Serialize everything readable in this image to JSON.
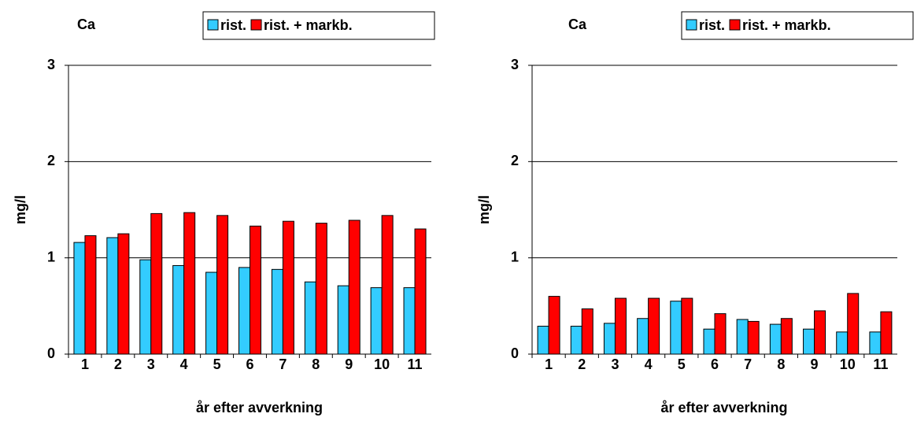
{
  "chart_data": [
    {
      "type": "bar",
      "title": "Ca",
      "ylabel": "mg/l",
      "xlabel": "år efter avverkning",
      "categories": [
        "1",
        "2",
        "3",
        "4",
        "5",
        "6",
        "7",
        "8",
        "9",
        "10",
        "11"
      ],
      "series": [
        {
          "name": "rist.",
          "color": "#33ccff",
          "values": [
            1.16,
            1.21,
            0.98,
            0.92,
            0.85,
            0.9,
            0.88,
            0.75,
            0.71,
            0.69,
            0.69
          ]
        },
        {
          "name": "rist. + markb.",
          "color": "#ff0000",
          "values": [
            1.23,
            1.25,
            1.46,
            1.47,
            1.44,
            1.33,
            1.38,
            1.36,
            1.39,
            1.44,
            1.3
          ]
        }
      ],
      "ylim": [
        0,
        3
      ],
      "yticks": [
        0,
        1,
        2,
        3
      ],
      "grid": true
    },
    {
      "type": "bar",
      "title": "Ca",
      "ylabel": "mg/l",
      "xlabel": "år efter avverkning",
      "categories": [
        "1",
        "2",
        "3",
        "4",
        "5",
        "6",
        "7",
        "8",
        "9",
        "10",
        "11"
      ],
      "series": [
        {
          "name": "rist.",
          "color": "#33ccff",
          "values": [
            0.29,
            0.29,
            0.32,
            0.37,
            0.55,
            0.26,
            0.36,
            0.31,
            0.26,
            0.23,
            0.23
          ]
        },
        {
          "name": "rist. + markb.",
          "color": "#ff0000",
          "values": [
            0.6,
            0.47,
            0.58,
            0.58,
            0.58,
            0.42,
            0.34,
            0.37,
            0.45,
            0.63,
            0.44
          ]
        }
      ],
      "ylim": [
        0,
        3
      ],
      "yticks": [
        0,
        1,
        2,
        3
      ],
      "grid": true
    }
  ]
}
